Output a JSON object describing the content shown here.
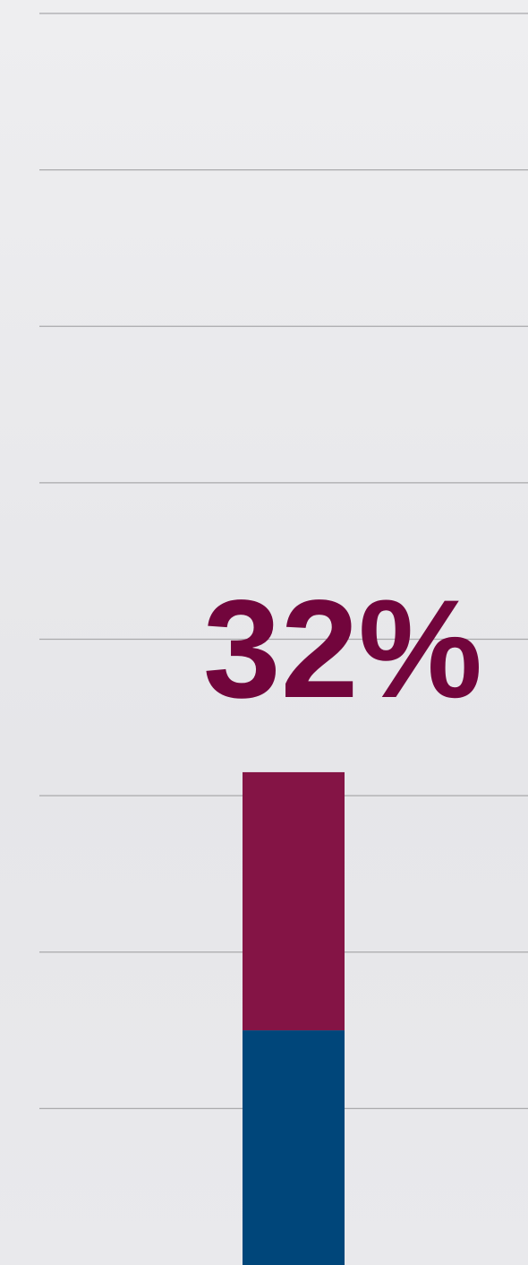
{
  "chart_data": {
    "type": "stacked-bar",
    "categories": [
      null
    ],
    "series": [
      {
        "color": "#00467a",
        "values": [
          1.5
        ]
      },
      {
        "color": "#841445",
        "values": [
          1.65
        ]
      }
    ],
    "ylim": [
      0,
      8
    ],
    "yticks": [
      1,
      2,
      3,
      4,
      5,
      6,
      7,
      8
    ],
    "grid": true,
    "annotation": "32%"
  }
}
